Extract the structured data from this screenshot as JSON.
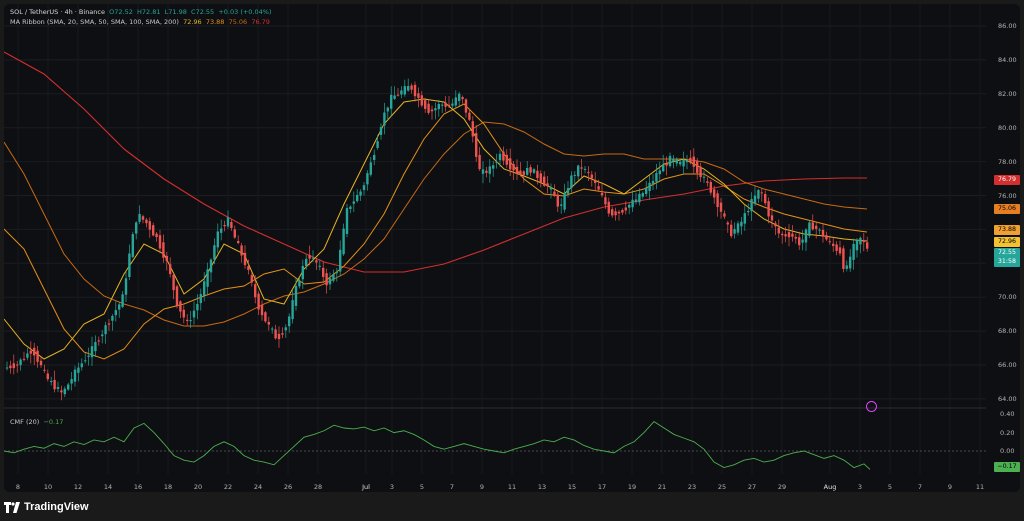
{
  "header": {
    "symbol": "SOL / TetherUS · 4h · Binance",
    "open": "O72.52",
    "high": "H72.81",
    "low": "L71.98",
    "close": "C72.55",
    "change": "+0.03 (+0.04%)",
    "ribbon_title": "MA Ribbon (SMA, 20, SMA, 50, SMA, 100, SMA, 200)",
    "ribbon_values": [
      "72.96",
      "73.88",
      "75.06",
      "76.79"
    ]
  },
  "cmf": {
    "label": "CMF (20)",
    "value": "−0.17",
    "tag": "−0.17"
  },
  "price_axis": [
    "86.00",
    "84.00",
    "82.00",
    "80.00",
    "78.00",
    "76.00",
    "74.00",
    "72.00",
    "70.00",
    "68.00",
    "66.00",
    "64.00"
  ],
  "cmf_axis": [
    "0.40",
    "0.20",
    "0.00",
    "−0.20"
  ],
  "price_tags": {
    "ma200": "76.79",
    "ma100": "75.06",
    "ma50": "73.88",
    "ma20": "72.96",
    "last": "72.55",
    "countdown": "31:58"
  },
  "time_axis": [
    "8",
    "10",
    "12",
    "14",
    "16",
    "18",
    "20",
    "22",
    "24",
    "26",
    "28",
    "Jul",
    "3",
    "5",
    "7",
    "9",
    "11",
    "13",
    "15",
    "17",
    "19",
    "21",
    "23",
    "25",
    "27",
    "29",
    "Aug",
    "3",
    "5",
    "7",
    "9",
    "11"
  ],
  "colors": {
    "up": "#26a69a",
    "down": "#ef5350",
    "ma20": "#e6b422",
    "ma50": "#e69016",
    "ma100": "#c76a14",
    "ma200": "#d32f2f",
    "cmf": "#4caf50"
  },
  "brand": "TradingView",
  "icons": {
    "logo": "tradingview-logo-icon",
    "compass": "compass-icon"
  }
}
